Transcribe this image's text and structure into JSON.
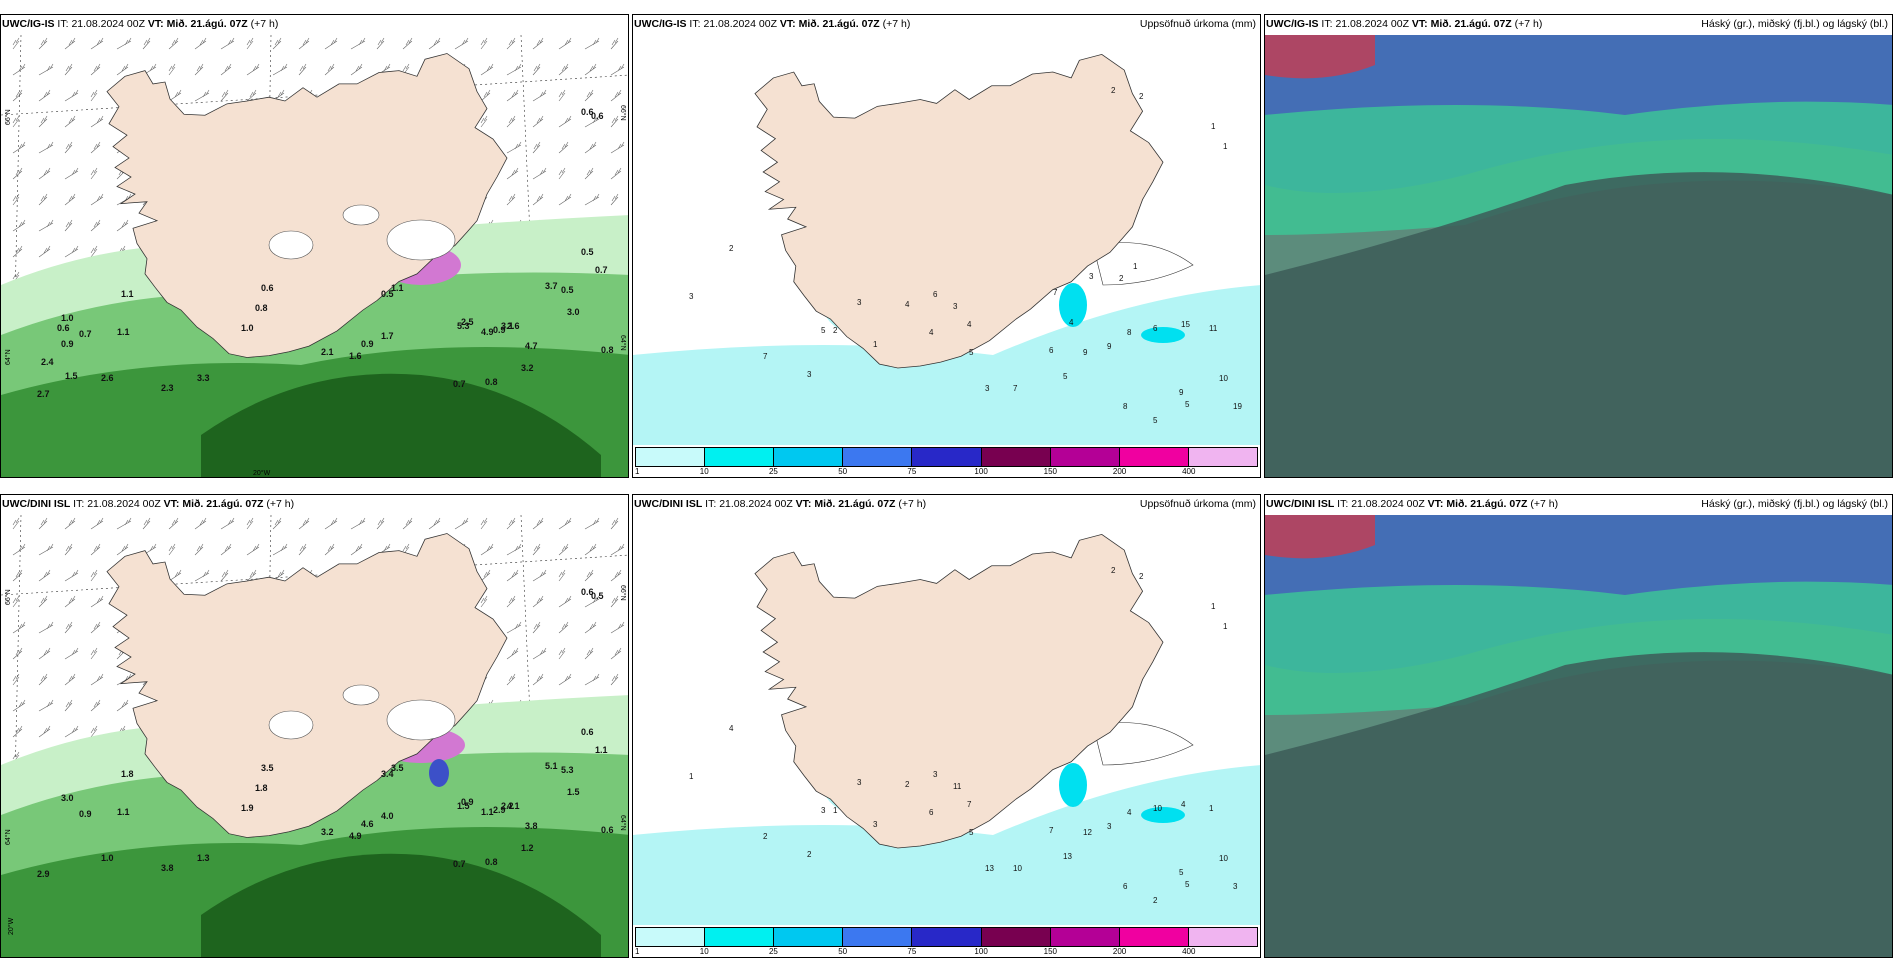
{
  "rows": [
    {
      "model": "UWC/IG-IS",
      "it_label": "IT:",
      "it_value": "21.08.2024 00Z",
      "vt_label": "VT:",
      "vt_value": "Mið. 21.ágú. 07Z",
      "lead": "(+7 h)",
      "precip_numbers": [
        "2",
        "2",
        "1",
        "1",
        "2",
        "3",
        "5",
        "7",
        "3",
        "1",
        "2",
        "3",
        "4",
        "6",
        "3",
        "4",
        "4",
        "5",
        "3",
        "7",
        "6",
        "5",
        "9",
        "9",
        "8",
        "6",
        "15",
        "11",
        "10",
        "19",
        "5",
        "8",
        "5",
        "9",
        "7",
        "4",
        "3",
        "2",
        "1"
      ]
    },
    {
      "model": "UWC/DINI ISL",
      "it_label": "IT:",
      "it_value": "21.08.2024 00Z",
      "vt_label": "VT:",
      "vt_value": "Mið. 21.ágú. 07Z",
      "lead": "(+7 h)",
      "precip_numbers": [
        "2",
        "2",
        "1",
        "1",
        "4",
        "1",
        "3",
        "2",
        "2",
        "3",
        "1",
        "3",
        "2",
        "3",
        "11",
        "7",
        "6",
        "5",
        "13",
        "10",
        "7",
        "13",
        "12",
        "3",
        "4",
        "10",
        "4",
        "1",
        "10",
        "3",
        "5",
        "6",
        "2",
        "5"
      ]
    }
  ],
  "panel_titles": {
    "precip": "Uppsöfnuð úrkoma (mm)",
    "cloud": "Háský (gr.), miðský (fj.bl.) og lágský (bl.)"
  },
  "precip_colorbar": {
    "labels": [
      "1",
      "10",
      "25",
      "50",
      "75",
      "100",
      "150",
      "200",
      "400"
    ],
    "colors": [
      "#c8fafa",
      "#00f0f0",
      "#00c8f0",
      "#3c78f0",
      "#2828c8",
      "#780050",
      "#b40096",
      "#f000a0",
      "#f0b4f0"
    ]
  },
  "cloud_colors": {
    "high": "#a0a0a0",
    "mid": "#3cc896",
    "low": "#3c64c8"
  },
  "land_color": "#f5e1d2",
  "lat_labels": [
    "66°N",
    "64°N"
  ],
  "lon_label": "20°W",
  "precip_rate_labels_row1": [
    "0.6",
    "0.6",
    "0.5",
    "0.7",
    "3.7",
    "0.5",
    "3.0",
    "2.6",
    "0.9",
    "4.7",
    "0.8",
    "3.2",
    "0.8",
    "0.7",
    "2.5",
    "5.3",
    "4.9",
    "3.1",
    "1.1",
    "0.5",
    "1.7",
    "0.9",
    "1.6",
    "2.1",
    "0.6",
    "0.8",
    "1.0",
    "1.1",
    "2.6",
    "2.3",
    "2.7",
    "3.3",
    "1.1",
    "1.0",
    "0.7",
    "0.6",
    "0.9",
    "1.5",
    "2.4"
  ],
  "precip_rate_labels_row2": [
    "0.6",
    "0.5",
    "0.6",
    "1.1",
    "5.1",
    "5.3",
    "1.5",
    "4.1",
    "2.9",
    "3.8",
    "0.6",
    "1.2",
    "0.8",
    "0.7",
    "0.9",
    "1.5",
    "1.1",
    "2.2",
    "3.5",
    "3.4",
    "4.0",
    "4.6",
    "4.9",
    "3.2",
    "3.5",
    "1.8",
    "1.9",
    "1.1",
    "1.0",
    "3.8",
    "2.9",
    "1.3",
    "1.8",
    "3.0",
    "0.9"
  ]
}
